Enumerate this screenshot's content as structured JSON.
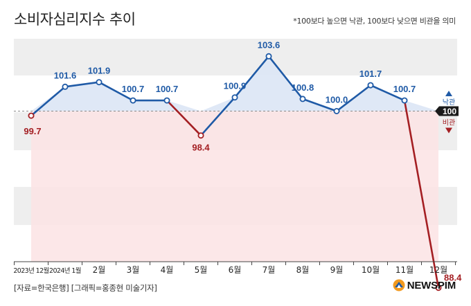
{
  "header": {
    "title": "소비자심리지수 추이",
    "note": "*100보다 높으면 낙관, 100보다 낮으면 비관을 의미"
  },
  "footer": {
    "source": "[자료=한국은행] [그래픽=홍종현 미술기자]",
    "brand": "NEWSPIM"
  },
  "legend": {
    "optimistic": "낙관",
    "pessimistic": "비관",
    "baseline_label": "100"
  },
  "colors": {
    "above": "#1f5aa6",
    "below": "#a41f23",
    "shade_above": "#dbe6f5",
    "shade_below": "#fbe3e4",
    "band": "#eeeeee",
    "baseline_box": "#1a1a1a"
  },
  "chart_data": {
    "type": "line",
    "title": "소비자심리지수 추이",
    "baseline": 100,
    "categories": [
      "2023년 12월",
      "2024년 1월",
      "2월",
      "3월",
      "4월",
      "5월",
      "6월",
      "7월",
      "8월",
      "9월",
      "10월",
      "11월",
      "12월"
    ],
    "values": [
      99.7,
      101.6,
      101.9,
      100.7,
      100.7,
      98.4,
      100.9,
      103.6,
      100.8,
      100.0,
      101.7,
      100.7,
      88.4
    ],
    "labels": [
      "99.7",
      "101.6",
      "101.9",
      "100.7",
      "100.7",
      "98.4",
      "100.9",
      "103.6",
      "100.8",
      "100.0",
      "101.7",
      "100.7",
      "88.4"
    ],
    "ylim": [
      86,
      105
    ],
    "grid": "horizontal bands",
    "xlabel": "",
    "ylabel": ""
  }
}
